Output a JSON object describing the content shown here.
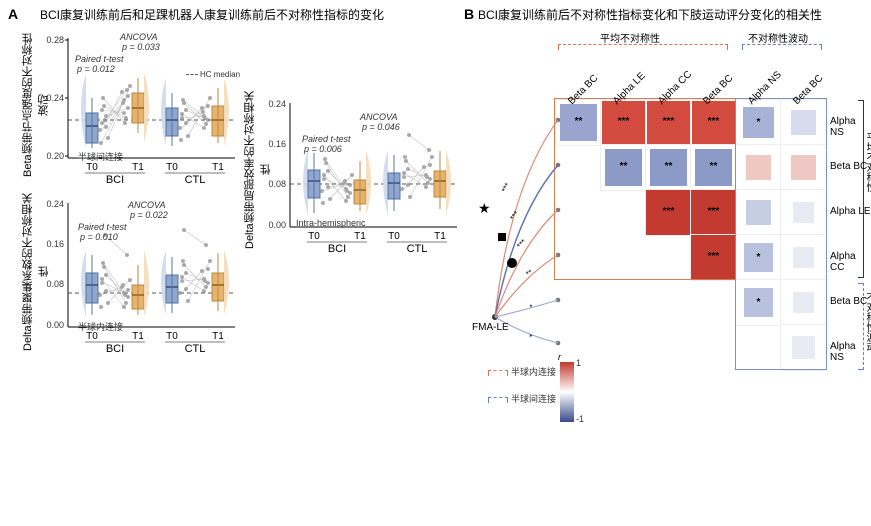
{
  "panelA": {
    "label": "A",
    "title": "BCI康复训练前后和足踝机器人康复训练前后不对称性指标的变化",
    "chart1": {
      "ylabel": "Beta频带节点强度的不对称性波动",
      "ancova": "ANCOVA",
      "ancova_p": "p = 0.033",
      "ttest": "Paired t-test",
      "ttest_p": "p = 0.012",
      "hc_legend": "HC median",
      "hc_median": 0.225,
      "ylim": [
        0.2,
        0.28
      ],
      "yticks": [
        0.2,
        0.24,
        0.28
      ],
      "xticks": [
        "T0",
        "T1",
        "T0",
        "T1"
      ],
      "groups": [
        "BCI",
        "CTL"
      ],
      "subcaption": "半球间连接",
      "box_t0_color": "#8fa8cf",
      "box_t1_color": "#e8b36e",
      "violin_t0_color": "#cdd9eb",
      "violin_t1_color": "#f3dcb8",
      "points": [
        0.215,
        0.228,
        0.208,
        0.232,
        0.22,
        0.245,
        0.21,
        0.238,
        0.205,
        0.24,
        0.217,
        0.226,
        0.212,
        0.23,
        0.222,
        0.235,
        0.207,
        0.227,
        0.218,
        0.242
      ]
    },
    "chart2": {
      "ylabel": "Delta频带聚集系数的不对称相关性",
      "ancova": "ANCOVA",
      "ancova_p": "p = 0.022",
      "ttest": "Paired t-test",
      "ttest_p": "p = 0.010",
      "hc_median": 0.065,
      "ylim": [
        0.0,
        0.24
      ],
      "yticks": [
        0.0,
        0.08,
        0.16,
        0.24
      ],
      "xticks": [
        "T0",
        "T1",
        "T0",
        "T1"
      ],
      "groups": [
        "BCI",
        "CTL"
      ],
      "subcaption": "半球内连接"
    },
    "chart3": {
      "ylabel": "Delta频带局部效率的不对称相关性",
      "ancova": "ANCOVA",
      "ancova_p": "p = 0.046",
      "ttest": "Paired t-test",
      "ttest_p": "p = 0.006",
      "hc_median": 0.085,
      "ylim": [
        0.0,
        0.24
      ],
      "yticks": [
        0.0,
        0.08,
        0.16,
        0.24
      ],
      "xticks": [
        "T0",
        "T1",
        "T0",
        "T1"
      ],
      "groups": [
        "BCI",
        "CTL"
      ],
      "subcaption": "Intra-hemispheric"
    }
  },
  "panelB": {
    "label": "B",
    "title": "BCI康复训练前后不对称性指标变化和下肢运动评分变化的相关性",
    "group1_label": "平均不对称性",
    "group2_label": "不对称性波动",
    "cols": [
      "Beta BC",
      "Alpha LE",
      "Alpha CC",
      "Beta BC",
      "Alpha NS",
      "Beta BC"
    ],
    "rows": [
      "Alpha NS",
      "Beta BC",
      "Alpha LE",
      "Alpha CC",
      "Beta BC",
      "Alpha NS"
    ],
    "right_group1_label": "平均不对称性",
    "right_group2_label": "不对称性波动",
    "fma_label": "FMA-LE",
    "legend_r": "r",
    "legend_max": "1",
    "legend_min": "-1",
    "legend_intra": "半球内连接",
    "legend_inter": "半球间连接",
    "intra_color": "#e07050",
    "inter_color": "#6a7fb8",
    "cells": [
      [
        {
          "c": "#9aa5cf",
          "s": "**",
          "sz": 0.82
        },
        {
          "c": "#d34b3f",
          "s": "***",
          "sz": 0.96
        },
        {
          "c": "#d34b3f",
          "s": "***",
          "sz": 0.96
        },
        {
          "c": "#d34b3f",
          "s": "***",
          "sz": 0.96
        },
        {
          "c": "#a6b3d6",
          "s": "*",
          "sz": 0.7
        },
        {
          "c": "#d7dbec",
          "s": "",
          "sz": 0.55
        }
      ],
      [
        null,
        {
          "c": "#8c9ac8",
          "s": "**",
          "sz": 0.84
        },
        {
          "c": "#8c9ac8",
          "s": "**",
          "sz": 0.84
        },
        {
          "c": "#8c9ac8",
          "s": "**",
          "sz": 0.84
        },
        {
          "c": "#eec9c3",
          "s": "",
          "sz": 0.55
        },
        {
          "c": "#eec9c3",
          "s": "",
          "sz": 0.55
        }
      ],
      [
        null,
        null,
        {
          "c": "#c23a30",
          "s": "***",
          "sz": 0.98
        },
        {
          "c": "#c23a30",
          "s": "***",
          "sz": 0.98
        },
        {
          "c": "#c6cee4",
          "s": "",
          "sz": 0.55
        },
        {
          "c": "#e8ebf4",
          "s": "",
          "sz": 0.45
        }
      ],
      [
        null,
        null,
        null,
        {
          "c": "#c23a30",
          "s": "***",
          "sz": 0.98
        },
        {
          "c": "#b8c2de",
          "s": "*",
          "sz": 0.65
        },
        {
          "c": "#e8ebf4",
          "s": "",
          "sz": 0.45
        }
      ],
      [
        null,
        null,
        null,
        null,
        {
          "c": "#b8c2de",
          "s": "*",
          "sz": 0.65
        },
        {
          "c": "#e8ebf4",
          "s": "",
          "sz": 0.45
        }
      ],
      [
        null,
        null,
        null,
        null,
        null,
        {
          "c": "#e8ebf4",
          "s": "",
          "sz": 0.5
        }
      ]
    ],
    "colorbar_colors": [
      "#c23a30",
      "#ffffff",
      "#3a4a8a"
    ]
  }
}
